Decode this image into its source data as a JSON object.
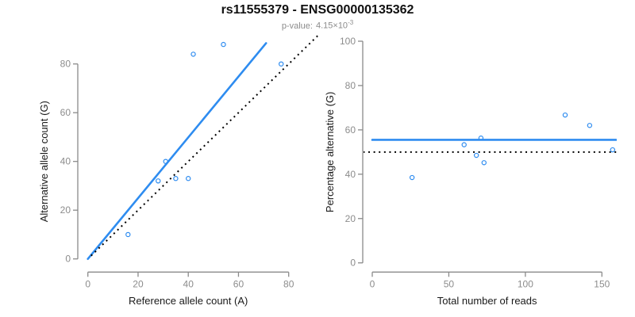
{
  "header": {
    "title": "rs11555379 - ENSG00000135362",
    "pvalue_label": "p-value:",
    "pvalue_mantissa": "4.15",
    "multiply_sign": "×",
    "pvalue_base": "10",
    "pvalue_exponent": "-3"
  },
  "colors": {
    "accent_blue": "#2E8CF0",
    "dashed_black": "#000000",
    "axis_gray": "#8A8A8A",
    "tick_label_gray": "#8C8C8C",
    "axis_title_color": "#1A1A1A"
  },
  "chart_data": [
    {
      "type": "scatter",
      "name": "allele-counts-scatter",
      "xlabel": "Reference allele count (A)",
      "ylabel": "Alternative allele count (G)",
      "x_ticks": [
        0,
        20,
        40,
        60,
        80
      ],
      "y_ticks": [
        0,
        20,
        40,
        60,
        80
      ],
      "xlim": [
        -3.5,
        91.5
      ],
      "ylim": [
        -3.7,
        91.7
      ],
      "grid": false,
      "points": [
        [
          16,
          10
        ],
        [
          28,
          32
        ],
        [
          31,
          40
        ],
        [
          35,
          33
        ],
        [
          40,
          33
        ],
        [
          42,
          84
        ],
        [
          54,
          88
        ],
        [
          77,
          80
        ]
      ],
      "lines": [
        {
          "kind": "abline",
          "intercept": 0,
          "slope": 1.247,
          "style": "solid",
          "color": "accent_blue",
          "span": [
            0,
            71.0
          ],
          "meaning": "fitted allelic ratio (55.5% alternative)"
        },
        {
          "kind": "abline",
          "intercept": 0,
          "slope": 1,
          "style": "dotted",
          "color": "dashed_black",
          "span": [
            1.3,
            92.5
          ],
          "meaning": "identity line y = x (50/50 alleles)"
        }
      ]
    },
    {
      "type": "scatter",
      "name": "percentage-vs-reads-scatter",
      "xlabel": "Total number of reads",
      "ylabel": "Percentage alternative (G)",
      "x_ticks": [
        0,
        50,
        100,
        150
      ],
      "y_ticks": [
        0,
        20,
        40,
        60,
        80,
        100
      ],
      "xlim": [
        -6,
        159.3
      ],
      "ylim": [
        -4,
        104
      ],
      "grid": false,
      "points": [
        [
          26,
          38.5
        ],
        [
          60,
          53.3
        ],
        [
          68,
          48.5
        ],
        [
          71,
          56.3
        ],
        [
          73,
          45.2
        ],
        [
          126,
          66.7
        ],
        [
          142,
          62.0
        ],
        [
          157,
          51.0
        ]
      ],
      "lines": [
        {
          "kind": "hline",
          "y": 55.5,
          "style": "solid",
          "color": "accent_blue",
          "span": [
            0,
            159.3
          ],
          "meaning": "estimated percentage alternative"
        },
        {
          "kind": "hline",
          "y": 50,
          "style": "dotted",
          "color": "dashed_black",
          "span": [
            -6,
            159.3
          ],
          "meaning": "50% reference line"
        }
      ]
    }
  ]
}
